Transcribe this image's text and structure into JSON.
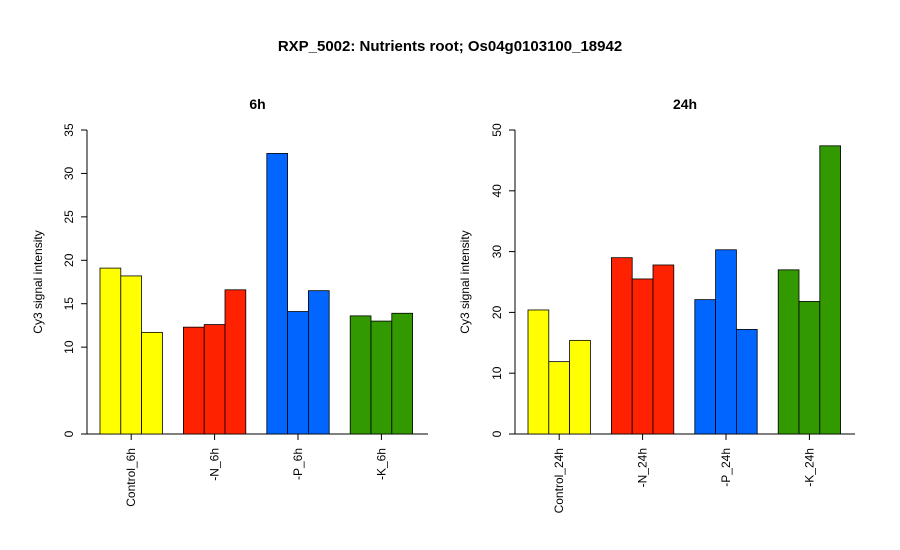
{
  "main_title": "RXP_5002: Nutrients root; Os04g0103100_18942",
  "colors": {
    "Control": "#ffff00",
    "N": "#ff2200",
    "P": "#0066ff",
    "K": "#339900"
  },
  "chart_data": [
    {
      "type": "bar",
      "title": "6h",
      "ylabel": "Cy3 signal intensity",
      "xlabel": "",
      "ylim": [
        0,
        35
      ],
      "yticks": [
        0,
        10,
        15,
        20,
        25,
        30,
        35
      ],
      "grid": false,
      "legend": "none",
      "groups": [
        {
          "label": "Control_6h",
          "color_key": "Control",
          "values": [
            19.1,
            18.2,
            11.7
          ]
        },
        {
          "label": "-N_6h",
          "color_key": "N",
          "values": [
            12.3,
            12.6,
            16.6
          ]
        },
        {
          "label": "-P_6h",
          "color_key": "P",
          "values": [
            32.3,
            14.1,
            16.5
          ]
        },
        {
          "label": "-K_6h",
          "color_key": "K",
          "values": [
            13.6,
            13.0,
            13.9
          ]
        }
      ]
    },
    {
      "type": "bar",
      "title": "24h",
      "ylabel": "Cy3 signal intensity",
      "xlabel": "",
      "ylim": [
        0,
        50
      ],
      "yticks": [
        0,
        10,
        20,
        30,
        40,
        50
      ],
      "grid": false,
      "legend": "none",
      "groups": [
        {
          "label": "Control_24h",
          "color_key": "Control",
          "values": [
            20.4,
            11.9,
            15.4
          ]
        },
        {
          "label": "-N_24h",
          "color_key": "N",
          "values": [
            29.0,
            25.5,
            27.8
          ]
        },
        {
          "label": "-P_24h",
          "color_key": "P",
          "values": [
            22.1,
            30.3,
            17.2
          ]
        },
        {
          "label": "-K_24h",
          "color_key": "K",
          "values": [
            27.0,
            21.8,
            47.4
          ]
        }
      ]
    }
  ]
}
